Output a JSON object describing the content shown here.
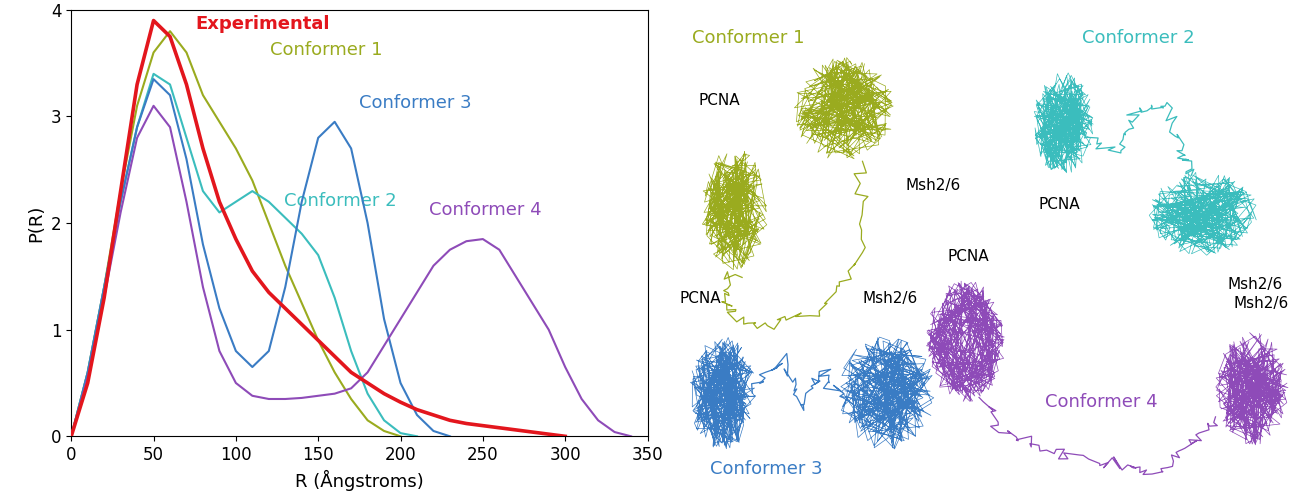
{
  "chart_data": {
    "type": "line",
    "xlabel": "R (Ångstroms)",
    "ylabel": "P(R)",
    "xlim": [
      0,
      350
    ],
    "ylim": [
      0,
      4
    ],
    "xticks": [
      0,
      50,
      100,
      150,
      200,
      250,
      300,
      350
    ],
    "yticks": [
      0,
      1,
      2,
      3,
      4
    ],
    "grid": false,
    "series": [
      {
        "name": "Experimental",
        "color": "#e3161d",
        "x": [
          0,
          10,
          20,
          30,
          40,
          50,
          60,
          70,
          80,
          90,
          100,
          110,
          120,
          130,
          140,
          150,
          160,
          170,
          180,
          190,
          200,
          210,
          220,
          230,
          240,
          250,
          260,
          270,
          280,
          290,
          300
        ],
        "values": [
          0,
          0.5,
          1.3,
          2.3,
          3.3,
          3.9,
          3.75,
          3.3,
          2.7,
          2.2,
          1.85,
          1.55,
          1.35,
          1.2,
          1.05,
          0.9,
          0.75,
          0.6,
          0.5,
          0.4,
          0.32,
          0.25,
          0.2,
          0.15,
          0.12,
          0.1,
          0.08,
          0.06,
          0.04,
          0.02,
          0
        ]
      },
      {
        "name": "Conformer 1",
        "color": "#9aab1f",
        "x": [
          0,
          10,
          20,
          30,
          40,
          50,
          60,
          70,
          80,
          90,
          100,
          110,
          120,
          130,
          140,
          150,
          160,
          170,
          180,
          190,
          200
        ],
        "values": [
          0,
          0.6,
          1.4,
          2.3,
          3.1,
          3.6,
          3.8,
          3.6,
          3.2,
          2.95,
          2.7,
          2.4,
          2.0,
          1.6,
          1.25,
          0.9,
          0.6,
          0.35,
          0.15,
          0.05,
          0
        ]
      },
      {
        "name": "Conformer 2",
        "color": "#3bbdbd",
        "x": [
          0,
          10,
          20,
          30,
          40,
          50,
          60,
          70,
          80,
          90,
          100,
          110,
          120,
          130,
          140,
          150,
          160,
          170,
          180,
          190,
          200,
          210
        ],
        "values": [
          0,
          0.6,
          1.4,
          2.2,
          2.9,
          3.4,
          3.3,
          2.8,
          2.3,
          2.1,
          2.2,
          2.3,
          2.2,
          2.05,
          1.9,
          1.7,
          1.3,
          0.8,
          0.4,
          0.15,
          0.03,
          0
        ]
      },
      {
        "name": "Conformer 3",
        "color": "#3a7cc4",
        "x": [
          0,
          10,
          20,
          30,
          40,
          50,
          60,
          70,
          80,
          90,
          100,
          110,
          120,
          130,
          140,
          150,
          160,
          170,
          180,
          190,
          200,
          210,
          220,
          230
        ],
        "values": [
          0,
          0.6,
          1.4,
          2.2,
          2.9,
          3.35,
          3.2,
          2.6,
          1.8,
          1.2,
          0.8,
          0.65,
          0.8,
          1.4,
          2.2,
          2.8,
          2.95,
          2.7,
          2.0,
          1.1,
          0.5,
          0.2,
          0.05,
          0
        ]
      },
      {
        "name": "Conformer 4",
        "color": "#8e4bb8",
        "x": [
          0,
          10,
          20,
          30,
          40,
          50,
          60,
          70,
          80,
          90,
          100,
          110,
          120,
          130,
          140,
          150,
          160,
          170,
          180,
          190,
          200,
          210,
          220,
          230,
          240,
          250,
          260,
          270,
          280,
          290,
          300,
          310,
          320,
          330,
          340
        ],
        "values": [
          0,
          0.55,
          1.3,
          2.1,
          2.8,
          3.1,
          2.9,
          2.2,
          1.4,
          0.8,
          0.5,
          0.38,
          0.35,
          0.35,
          0.36,
          0.38,
          0.4,
          0.45,
          0.6,
          0.85,
          1.1,
          1.35,
          1.6,
          1.75,
          1.83,
          1.85,
          1.75,
          1.5,
          1.25,
          1.0,
          0.65,
          0.35,
          0.15,
          0.04,
          0
        ]
      }
    ]
  },
  "conformers": [
    {
      "title": "Conformer 1",
      "color": "#9aab1f",
      "labels": [
        "PCNA",
        "Msh2/6"
      ]
    },
    {
      "title": "Conformer 2",
      "color": "#3bbdbd",
      "labels": [
        "PCNA",
        "Msh2/6"
      ]
    },
    {
      "title": "Conformer 3",
      "color": "#3a7cc4",
      "labels": [
        "PCNA",
        "Msh2/6"
      ]
    },
    {
      "title": "Conformer 4",
      "color": "#8e4bb8",
      "labels": [
        "PCNA",
        "Msh2/6"
      ]
    }
  ]
}
